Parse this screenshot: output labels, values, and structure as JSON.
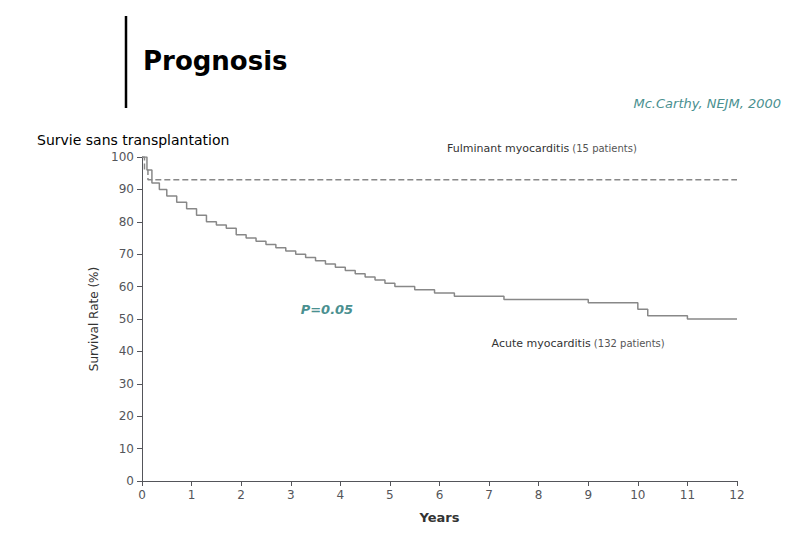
{
  "chart_data": {
    "type": "step",
    "title": "Prognosis",
    "subtitle": "Mc.Carthy, NEJM, 2000",
    "subtitle_color": "#4a9090",
    "chart_subtitle": "Survie sans transplantation",
    "xlabel": "Years",
    "ylabel": "Survival Rate (%)",
    "xlim": [
      0,
      12
    ],
    "ylim": [
      0,
      100
    ],
    "xticks": [
      0,
      1,
      2,
      3,
      4,
      5,
      6,
      7,
      8,
      9,
      10,
      11,
      12
    ],
    "yticks": [
      0,
      10,
      20,
      30,
      40,
      50,
      60,
      70,
      80,
      90,
      100
    ],
    "grid": false,
    "series": [
      {
        "name": "Fulminant myocarditis",
        "patients_label": " (15 patients)",
        "label_color": "#333333",
        "patients_color": "#555555",
        "color": "#888888",
        "line_style": "dashed",
        "x": [
          0,
          0.05,
          0.12,
          0.2,
          0.4,
          1.0,
          2.0,
          3.0,
          4.0,
          5.0,
          6.0,
          7.0,
          8.0,
          9.0,
          10.0,
          11.0,
          12.0
        ],
        "values": [
          100,
          96,
          93,
          93,
          93,
          93,
          93,
          93,
          93,
          93,
          93,
          93,
          93,
          93,
          93,
          93,
          93
        ]
      },
      {
        "name": "Acute myocarditis",
        "patients_label": " (132 patients)",
        "label_color": "#333333",
        "patients_color": "#555555",
        "color": "#888888",
        "line_style": "solid",
        "x": [
          0,
          0.1,
          0.2,
          0.35,
          0.5,
          0.7,
          0.9,
          1.1,
          1.3,
          1.5,
          1.7,
          1.9,
          2.1,
          2.3,
          2.5,
          2.7,
          2.9,
          3.1,
          3.3,
          3.5,
          3.7,
          3.9,
          4.1,
          4.3,
          4.5,
          4.7,
          4.9,
          5.1,
          5.3,
          5.5,
          5.7,
          5.9,
          6.1,
          6.3,
          6.5,
          6.8,
          7.0,
          7.3,
          7.6,
          8.0,
          8.5,
          9.0,
          9.5,
          10.0,
          10.2,
          10.5,
          11.0,
          12.0
        ],
        "values": [
          100,
          96,
          92,
          90,
          88,
          86,
          84,
          82,
          80,
          79,
          78,
          76,
          75,
          74,
          73,
          72,
          71,
          70,
          69,
          68,
          67,
          66,
          65,
          64,
          63,
          62,
          61,
          60,
          60,
          59,
          59,
          58,
          58,
          57,
          57,
          57,
          57,
          56,
          56,
          56,
          56,
          55,
          55,
          53,
          51,
          51,
          50,
          50
        ]
      }
    ],
    "annotations": [
      {
        "text": "P=0.05",
        "color": "#4a9090"
      }
    ]
  }
}
